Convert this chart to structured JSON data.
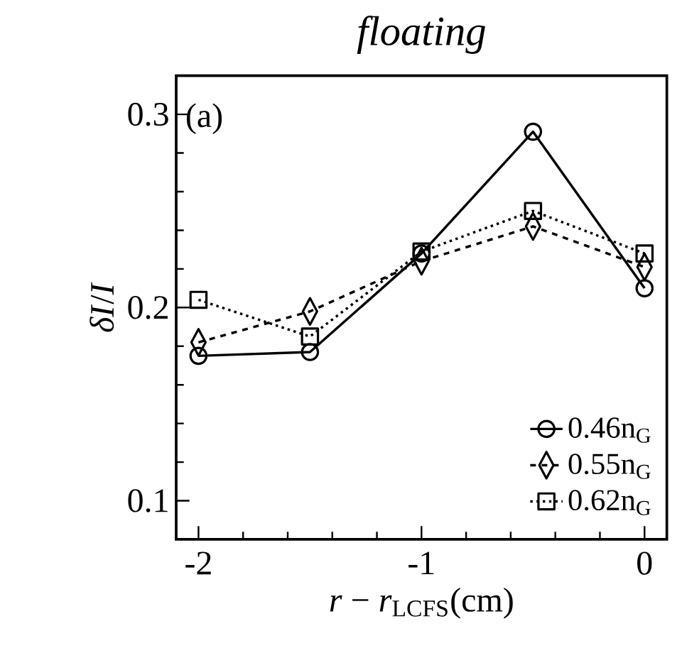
{
  "chart_data": {
    "type": "line",
    "title": "floating",
    "xlabel": "*r* − *r*$_{LCFS}$(cm)",
    "ylabel": "*δI*/*I*",
    "annotations": [
      "(a)"
    ],
    "x": [
      -2,
      -1.5,
      -1,
      -0.5,
      0
    ],
    "series": [
      {
        "name": "0.46n$_{G}$",
        "color": "#000000",
        "marker": "circle",
        "line_style": "solid",
        "values": [
          0.175,
          0.177,
          0.228,
          0.291,
          0.21
        ]
      },
      {
        "name": "0.55n$_{G}$",
        "color": "#000000",
        "marker": "diamond",
        "line_style": "dashed",
        "values": [
          0.182,
          0.198,
          0.224,
          0.242,
          0.221
        ]
      },
      {
        "name": "0.62n$_{G}$",
        "color": "#000000",
        "marker": "square",
        "line_style": "dotted",
        "values": [
          0.204,
          0.185,
          0.229,
          0.25,
          0.228
        ]
      }
    ],
    "xlim": [
      -2.1,
      0.1
    ],
    "ylim": [
      0.08,
      0.32
    ],
    "xticks": [
      -2,
      {
        "value": -1.8,
        "label": null
      },
      {
        "value": -1.6,
        "label": null
      },
      {
        "value": -1.4,
        "label": null
      },
      {
        "value": -1.2,
        "label": null
      },
      -1,
      {
        "value": -0.8,
        "label": null
      },
      {
        "value": -0.6,
        "label": null
      },
      {
        "value": -0.4,
        "label": null
      },
      {
        "value": -0.2,
        "label": null
      },
      0
    ],
    "yticks": [
      0.1,
      {
        "value": 0.12,
        "label": null
      },
      {
        "value": 0.14,
        "label": null
      },
      {
        "value": 0.16,
        "label": null
      },
      {
        "value": 0.18,
        "label": null
      },
      0.2,
      {
        "value": 0.22,
        "label": null
      },
      {
        "value": 0.24,
        "label": null
      },
      {
        "value": 0.26,
        "label": null
      },
      {
        "value": 0.28,
        "label": null
      },
      0.3
    ],
    "grid": false,
    "legend": "bottom right"
  }
}
